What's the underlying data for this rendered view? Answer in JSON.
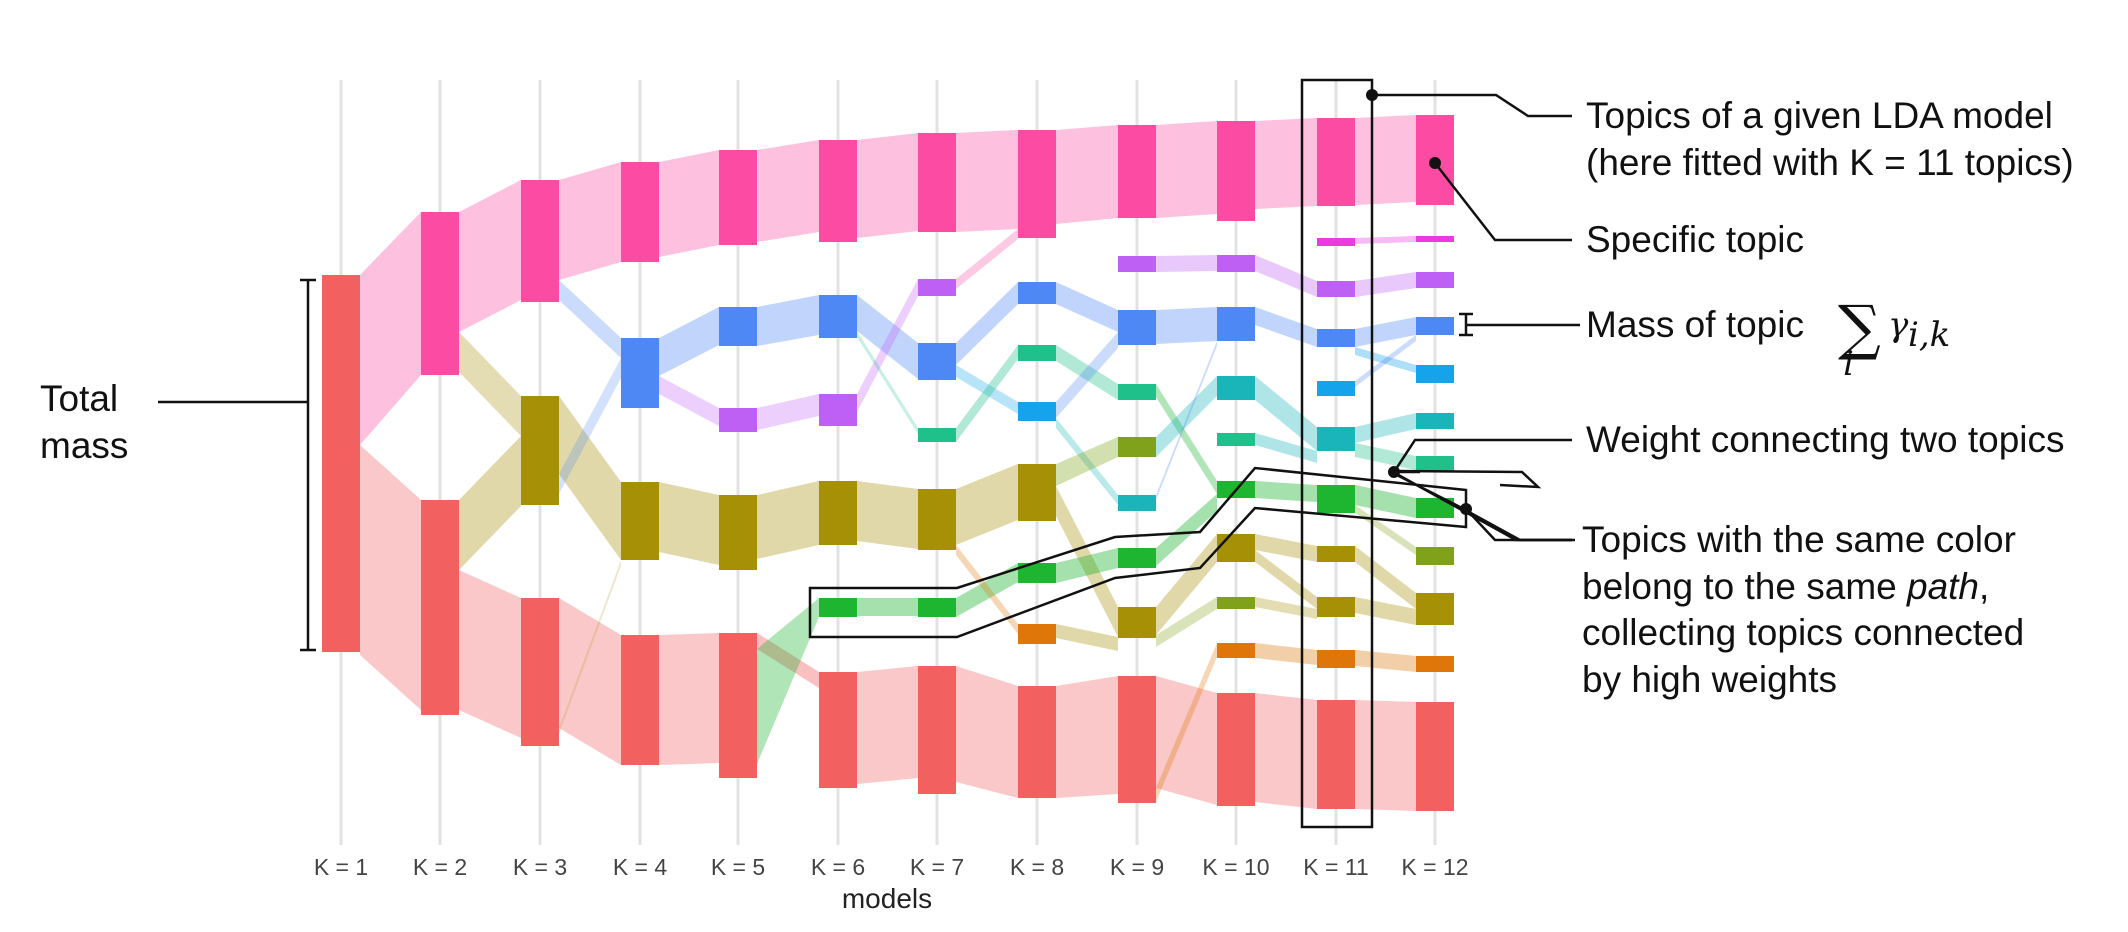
{
  "axis": {
    "title": "models",
    "ticks": [
      "K = 1",
      "K = 2",
      "K = 3",
      "K = 4",
      "K = 5",
      "K = 6",
      "K = 7",
      "K = 8",
      "K = 9",
      "K = 10",
      "K = 11",
      "K = 12"
    ]
  },
  "annotations": {
    "total_mass_line1": "Total",
    "total_mass_line2": "mass",
    "topics_of_model_line1": "Topics of a given LDA model",
    "topics_of_model_line2": "(here fitted with K = 11 topics)",
    "specific_topic": "Specific topic",
    "mass_of_topic": "Mass of topic",
    "mass_formula_index": "i",
    "mass_formula_gamma": "γ",
    "mass_formula_sub": "i,k",
    "weight_connecting": "Weight connecting two topics",
    "same_color_line1": "Topics with the same color",
    "same_color_line2_pre": "belong to the same ",
    "same_color_line2_em": "path",
    "same_color_line2_post": ",",
    "same_color_line3": "collecting topics connected",
    "same_color_line4": "by high weights"
  },
  "colors": {
    "red": "#f26060",
    "pink": "#fb4ba2",
    "olive": "#a69005",
    "blue": "#4e88f5",
    "purple": "#bf60f5",
    "green": "#1eb530",
    "teal": "#1ab5b9",
    "lightgreen": "#1fc08a",
    "skyblue": "#15a4ec",
    "yellowgreen": "#7fa21a",
    "orange": "#de760a",
    "magenta": "#ea3ae0"
  }
}
